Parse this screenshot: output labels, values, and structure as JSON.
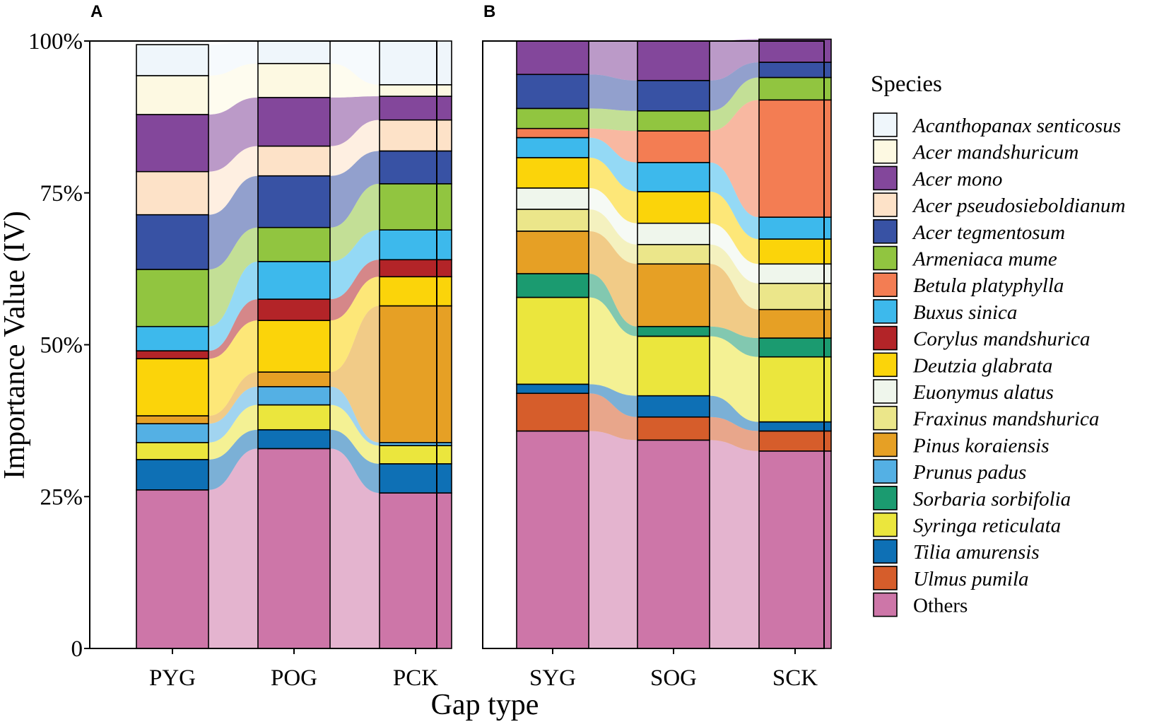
{
  "chart_data": {
    "type": "bar",
    "subtype": "stacked-100-alluvial",
    "xlabel": "Gap type",
    "ylabel": "Importance Value (IV)",
    "ylim": [
      0,
      100
    ],
    "ytick_labels": [
      "0",
      "25%",
      "50%",
      "75%",
      "100%"
    ],
    "legend_title": "Species",
    "species": [
      {
        "name": "Acanthopanax senticosus",
        "color": "#eff6fb",
        "italic": true
      },
      {
        "name": "Acer mandshuricum",
        "color": "#fdf9e2",
        "italic": true
      },
      {
        "name": "Acer mono",
        "color": "#83479b",
        "italic": true
      },
      {
        "name": "Acer pseudosieboldianum",
        "color": "#fde2c8",
        "italic": true
      },
      {
        "name": "Acer tegmentosum",
        "color": "#3852a4",
        "italic": true
      },
      {
        "name": "Armeniaca mume",
        "color": "#91c540",
        "italic": true
      },
      {
        "name": "Betula platyphylla",
        "color": "#f37d53",
        "italic": true
      },
      {
        "name": "Buxus sinica",
        "color": "#3db9ec",
        "italic": true
      },
      {
        "name": "Corylus mandshurica",
        "color": "#b32428",
        "italic": true
      },
      {
        "name": "Deutzia glabrata",
        "color": "#fbd40a",
        "italic": true
      },
      {
        "name": "Euonymus alatus",
        "color": "#eff6ec",
        "italic": true
      },
      {
        "name": "Fraxinus mandshurica",
        "color": "#ebe68a",
        "italic": true
      },
      {
        "name": "Pinus koraiensis",
        "color": "#e6a025",
        "italic": true
      },
      {
        "name": "Prunus padus",
        "color": "#54b0e4",
        "italic": true
      },
      {
        "name": "Sorbaria sorbifolia",
        "color": "#1b9b70",
        "italic": true
      },
      {
        "name": "Syringa reticulata",
        "color": "#ebe63d",
        "italic": true
      },
      {
        "name": "Tilia amurensis",
        "color": "#0e70b5",
        "italic": true
      },
      {
        "name": "Ulmus pumila",
        "color": "#d65d2b",
        "italic": true
      },
      {
        "name": "Others",
        "color": "#cd76a8",
        "italic": false
      }
    ],
    "panels": [
      {
        "letter": "A",
        "categories": [
          "PYG",
          "POG",
          "PCK"
        ],
        "values": {
          "PYG": {
            "Others": 26.1,
            "Tilia amurensis": 5,
            "Syringa reticulata": 2.8,
            "Prunus padus": 3.1,
            "Pinus koraiensis": 1.3,
            "Deutzia glabrata": 9.4,
            "Corylus mandshurica": 1.3,
            "Buxus sinica": 4,
            "Armeniaca mume": 9.4,
            "Acer tegmentosum": 9,
            "Acer pseudosieboldianum": 7.1,
            "Acer mono": 9.4,
            "Acer mandshuricum": 6.4,
            "Acanthopanax senticosus": 5.1
          },
          "POG": {
            "Others": 32.9,
            "Tilia amurensis": 3.1,
            "Syringa reticulata": 4.1,
            "Prunus padus": 3,
            "Pinus koraiensis": 2.4,
            "Deutzia glabrata": 8.5,
            "Corylus mandshurica": 3.5,
            "Buxus sinica": 6.2,
            "Armeniaca mume": 5.6,
            "Acer tegmentosum": 8.5,
            "Acer pseudosieboldianum": 4.9,
            "Acer mono": 8,
            "Acer mandshuricum": 5.6,
            "Acanthopanax senticosus": 3.7
          },
          "PCK": {
            "Others": 25.6,
            "Tilia amurensis": 4.8,
            "Syringa reticulata": 3,
            "Prunus padus": 0.5,
            "Pinus koraiensis": 22.5,
            "Deutzia glabrata": 4.8,
            "Corylus mandshurica": 2.8,
            "Buxus sinica": 4.9,
            "Armeniaca mume": 7.6,
            "Acer tegmentosum": 5.4,
            "Acer pseudosieboldianum": 5.1,
            "Acer mono": 3.9,
            "Acer mandshuricum": 1.9,
            "Acanthopanax senticosus": 7.2
          }
        }
      },
      {
        "letter": "B",
        "categories": [
          "SYG",
          "SOG",
          "SCK"
        ],
        "values": {
          "SYG": {
            "Others": 35.8,
            "Ulmus pumila": 6.2,
            "Tilia amurensis": 1.5,
            "Syringa reticulata": 14.3,
            "Sorbaria sorbifolia": 3.9,
            "Pinus koraiensis": 7,
            "Fraxinus mandshurica": 3.6,
            "Euonymus alatus": 3.5,
            "Deutzia glabrata": 5,
            "Buxus sinica": 3.3,
            "Betula platyphylla": 1.5,
            "Armeniaca mume": 3.3,
            "Acer tegmentosum": 5.6,
            "Acer mono": 5.5
          },
          "SOG": {
            "Others": 34.3,
            "Ulmus pumila": 3.8,
            "Tilia amurensis": 3.5,
            "Syringa reticulata": 9.8,
            "Sorbaria sorbifolia": 1.6,
            "Pinus koraiensis": 10.3,
            "Fraxinus mandshurica": 3.2,
            "Euonymus alatus": 3.5,
            "Deutzia glabrata": 5.2,
            "Buxus sinica": 4.8,
            "Betula platyphylla": 5.2,
            "Armeniaca mume": 3.3,
            "Acer tegmentosum": 5,
            "Acer mono": 6.5
          },
          "SCK": {
            "Others": 32.5,
            "Ulmus pumila": 3.3,
            "Tilia amurensis": 1.5,
            "Syringa reticulata": 10.7,
            "Sorbaria sorbifolia": 3.1,
            "Pinus koraiensis": 4.7,
            "Fraxinus mandshurica": 4.3,
            "Euonymus alatus": 3.2,
            "Deutzia glabrata": 4.1,
            "Buxus sinica": 3.6,
            "Betula platyphylla": 19.3,
            "Armeniaca mume": 3.7,
            "Acer tegmentosum": 2.5,
            "Acer mono": 3.8
          }
        }
      }
    ]
  }
}
